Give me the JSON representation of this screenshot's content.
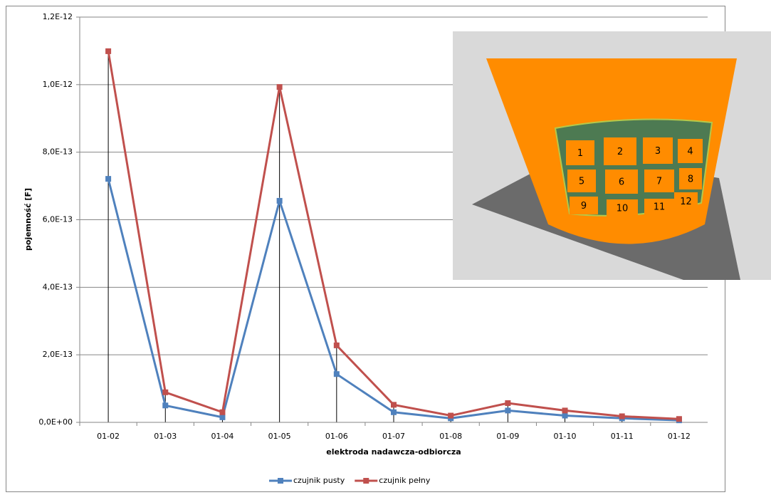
{
  "chart_data": {
    "type": "line",
    "ylabel": "pojemność [F]",
    "xlabel": "elektroda nadawcza-odbiorcza",
    "categories": [
      "01-02",
      "01-03",
      "01-04",
      "01-05",
      "01-06",
      "01-07",
      "01-08",
      "01-09",
      "01-10",
      "01-11",
      "01-12"
    ],
    "series": [
      {
        "name": "czujnik pusty",
        "color": "#4f81bd",
        "values": [
          7.21e-13,
          5e-14,
          1.5e-14,
          6.56e-13,
          1.43e-13,
          3e-14,
          1.2e-14,
          3.5e-14,
          2e-14,
          1.2e-14,
          6e-15
        ]
      },
      {
        "name": "czujnik pełny",
        "color": "#c0504d",
        "values": [
          1.099e-12,
          8.9e-14,
          3e-14,
          9.93e-13,
          2.28e-13,
          5.2e-14,
          2e-14,
          5.7e-14,
          3.5e-14,
          1.8e-14,
          1e-14
        ]
      }
    ],
    "ylim": [
      0,
      1.2e-12
    ],
    "yticks": [
      {
        "value": 0,
        "label": "0,0E+00"
      },
      {
        "value": 2e-13,
        "label": "2,0E-13"
      },
      {
        "value": 4e-13,
        "label": "4,0E-13"
      },
      {
        "value": 6e-13,
        "label": "6,0E-13"
      },
      {
        "value": 8e-13,
        "label": "8,0E-13"
      },
      {
        "value": 1e-12,
        "label": "1,0E-12"
      },
      {
        "value": 1.2e-12,
        "label": "1,2E-12"
      }
    ],
    "grid": true,
    "drop_lines": true,
    "legend": "bottom",
    "inset_labels": [
      "1",
      "2",
      "3",
      "4",
      "5",
      "6",
      "7",
      "8",
      "9",
      "10",
      "11",
      "12"
    ]
  }
}
